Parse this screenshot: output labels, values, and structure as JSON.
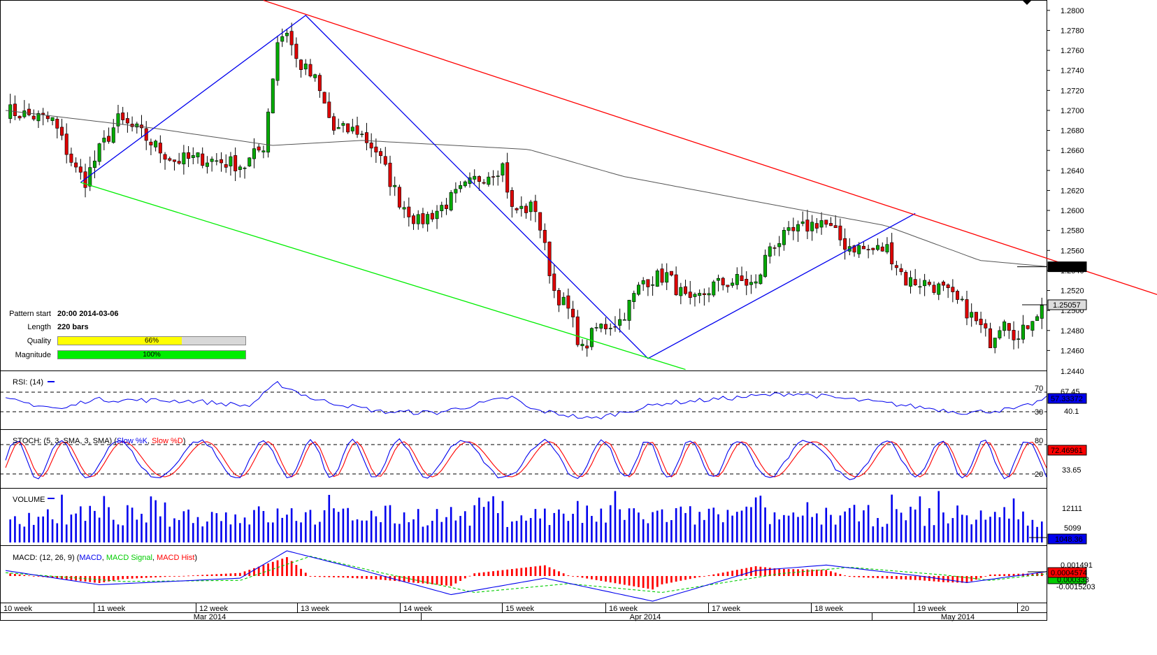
{
  "panels": {
    "rsi": {
      "title": "RSI: (14)",
      "current": "57.33372",
      "levels": [
        "70",
        "30"
      ],
      "right_labels": [
        "67.45",
        "40.1"
      ]
    },
    "stoch": {
      "title_prefix": "STOCH: (5, 3, SMA, 3, SMA) (",
      "k_label": "Slow %K",
      "d_label": "Slow %D",
      "title_suffix": ")",
      "current": "72.46961",
      "levels": [
        "80",
        "20"
      ],
      "right_labels": [
        "33.65"
      ]
    },
    "volume": {
      "title": "VOLUME",
      "current": "1048.36",
      "right_labels": [
        "12111",
        "5099"
      ]
    },
    "macd": {
      "title_prefix": "MACD: (12, 26, 9) (",
      "macd_label": "MACD",
      "signal_label": "MACD Signal",
      "hist_label": "MACD Hist",
      "title_suffix": ")",
      "current": "0.0004574",
      "right_labels": [
        "0.001491",
        "-0.0015203"
      ],
      "partial_label": "0.000333"
    }
  },
  "pattern_info": {
    "start_label": "Pattern start",
    "start_value": "20:00 2014-03-06",
    "length_label": "Length",
    "length_value": "220 bars",
    "quality_label": "Quality",
    "quality_value": "66%",
    "quality_fraction": 0.66,
    "magnitude_label": "Magnitude",
    "magnitude_value": "100%",
    "magnitude_fraction": 1.0
  },
  "price_labels": {
    "ma_current": "1.25437",
    "price_current": "1.25057",
    "partial_top": "1.2440"
  },
  "x_axis": {
    "weeks": [
      "10 week",
      "11 week",
      "12 week",
      "13 week",
      "14 week",
      "15 week",
      "16 week",
      "17 week",
      "18 week",
      "19 week",
      "20"
    ],
    "months": [
      "Mar 2014",
      "Apr 2014",
      "May 2014"
    ]
  },
  "colors": {
    "bull": "#00aa00",
    "bear": "#dd0000",
    "blue": "#0000ee",
    "red": "#ff0000",
    "green": "#00ee00",
    "ma": "#555555",
    "quality_fill": "#ffff00",
    "magnitude_fill": "#00ee00",
    "macd_signal": "#00cc00"
  },
  "chart_data": [
    {
      "type": "candlestick",
      "bars": 220,
      "y_ticks": [
        "1.2800",
        "1.2780",
        "1.2760",
        "1.2740",
        "1.2720",
        "1.2700",
        "1.2680",
        "1.2660",
        "1.2640",
        "1.2620",
        "1.2600",
        "1.2580",
        "1.2560",
        "1.2540",
        "1.2520",
        "1.2500",
        "1.2480",
        "1.2460"
      ],
      "ylim": [
        1.244,
        1.2802
      ],
      "close_anchors": [
        [
          0,
          1.27
        ],
        [
          5,
          1.2695
        ],
        [
          10,
          1.269
        ],
        [
          15,
          1.264
        ],
        [
          17,
          1.263
        ],
        [
          20,
          1.266
        ],
        [
          24,
          1.269
        ],
        [
          28,
          1.268
        ],
        [
          33,
          1.266
        ],
        [
          36,
          1.265
        ],
        [
          42,
          1.2652
        ],
        [
          47,
          1.2648
        ],
        [
          51,
          1.2645
        ],
        [
          55,
          1.2665
        ],
        [
          58,
          1.277
        ],
        [
          60,
          1.278
        ],
        [
          62,
          1.275
        ],
        [
          66,
          1.273
        ],
        [
          70,
          1.268
        ],
        [
          75,
          1.268
        ],
        [
          79,
          1.266
        ],
        [
          84,
          1.261
        ],
        [
          88,
          1.2588
        ],
        [
          92,
          1.26
        ],
        [
          96,
          1.2615
        ],
        [
          100,
          1.263
        ],
        [
          106,
          1.2645
        ],
        [
          108,
          1.26
        ],
        [
          113,
          1.2603
        ],
        [
          117,
          1.252
        ],
        [
          120,
          1.25
        ],
        [
          123,
          1.246
        ],
        [
          126,
          1.2482
        ],
        [
          131,
          1.249
        ],
        [
          136,
          1.253
        ],
        [
          141,
          1.2535
        ],
        [
          146,
          1.2505
        ],
        [
          151,
          1.2525
        ],
        [
          156,
          1.253
        ],
        [
          160,
          1.2525
        ],
        [
          163,
          1.2565
        ],
        [
          169,
          1.258
        ],
        [
          174,
          1.259
        ],
        [
          179,
          1.2566
        ],
        [
          184,
          1.256
        ],
        [
          188,
          1.2562
        ],
        [
          192,
          1.253
        ],
        [
          197,
          1.2527
        ],
        [
          200,
          1.252
        ],
        [
          205,
          1.25
        ],
        [
          210,
          1.247
        ],
        [
          213,
          1.2495
        ],
        [
          216,
          1.247
        ],
        [
          219,
          1.2495
        ],
        [
          222,
          1.2506
        ]
      ],
      "ma_anchors": [
        [
          0,
          1.27
        ],
        [
          30,
          1.2683
        ],
        [
          56,
          1.2665
        ],
        [
          75,
          1.267
        ],
        [
          110,
          1.2661
        ],
        [
          130,
          1.2634
        ],
        [
          160,
          1.2607
        ],
        [
          185,
          1.2585
        ],
        [
          205,
          1.255
        ],
        [
          219,
          1.2544
        ]
      ],
      "pattern_lines": {
        "blue_zigzag": [
          [
            0,
            1.2628
          ],
          [
            1,
            1.2795
          ],
          [
            2,
            1.2452
          ],
          [
            3,
            1.2597
          ]
        ],
        "red_resistance": [
          [
            1,
            1.281
          ],
          [
            2,
            1.2506
          ]
        ],
        "green_support": [
          [
            0,
            1.2628
          ],
          [
            1,
            1.2441
          ]
        ]
      }
    },
    {
      "type": "line",
      "name": "RSI (14)",
      "ylim": [
        0,
        100
      ],
      "levels": [
        70,
        30
      ],
      "anchors": [
        [
          0,
          55
        ],
        [
          12,
          35
        ],
        [
          18,
          55
        ],
        [
          40,
          52
        ],
        [
          52,
          42
        ],
        [
          58,
          88
        ],
        [
          66,
          55
        ],
        [
          80,
          30
        ],
        [
          92,
          28
        ],
        [
          108,
          60
        ],
        [
          112,
          35
        ],
        [
          125,
          15
        ],
        [
          140,
          47
        ],
        [
          168,
          68
        ],
        [
          190,
          45
        ],
        [
          205,
          28
        ],
        [
          216,
          36
        ],
        [
          222,
          57
        ]
      ]
    },
    {
      "type": "line",
      "name": "STOCH (5,3,SMA,3,SMA)",
      "series": [
        "Slow %K",
        "Slow %D"
      ],
      "ylim": [
        0,
        100
      ],
      "levels": [
        80,
        20
      ]
    },
    {
      "type": "bar",
      "name": "VOLUME",
      "ylim": [
        0,
        15500
      ],
      "last": 1048
    },
    {
      "type": "line",
      "name": "MACD (12,26,9)",
      "series": [
        "MACD",
        "MACD Signal",
        "MACD Hist"
      ],
      "ylim": [
        -0.0023,
        0.0023
      ]
    }
  ]
}
